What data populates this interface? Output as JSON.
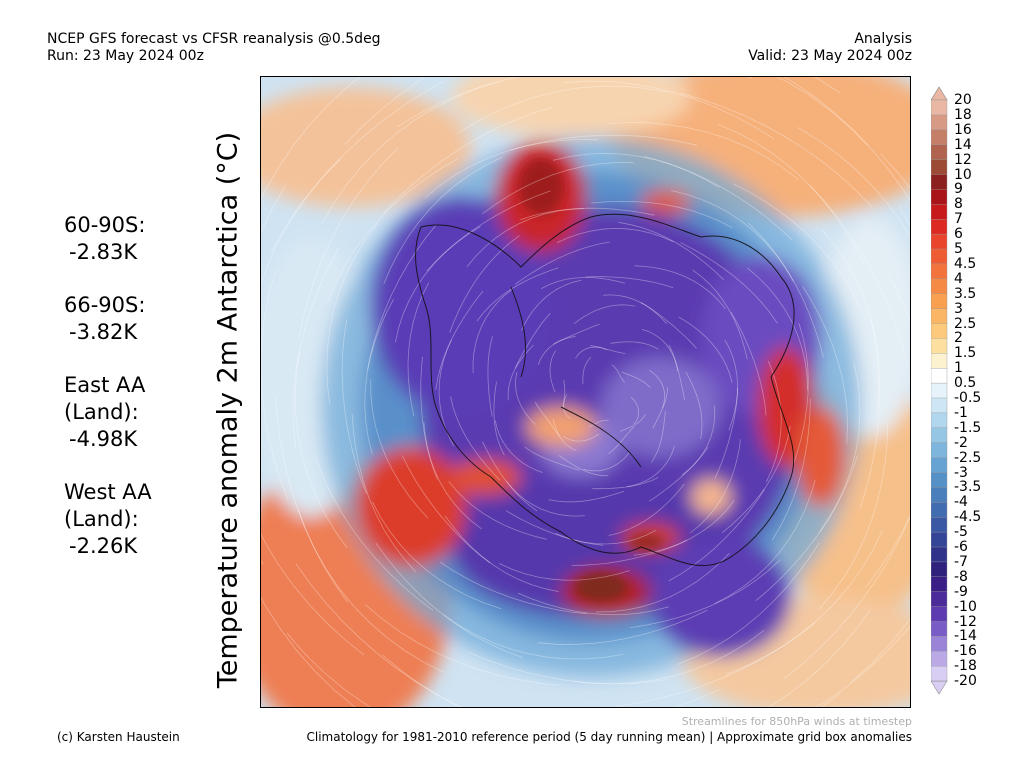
{
  "header": {
    "title": "NCEP GFS forecast vs CFSR reanalysis @0.5deg",
    "run": "Run: 23 May 2024 00z",
    "mode": "Analysis",
    "valid": "Valid: 23 May 2024 00z"
  },
  "ylabel": "Temperature anomaly 2m Antarctica (°C)",
  "stats": [
    {
      "name": "60-90S:",
      "value": "-2.83K"
    },
    {
      "name": "66-90S:",
      "value": "-3.82K"
    },
    {
      "name": "East AA\n(Land):",
      "value": "-4.98K"
    },
    {
      "name": "West AA\n(Land):",
      "value": "-2.26K"
    }
  ],
  "colorbar": {
    "labels": [
      "20",
      "18",
      "16",
      "14",
      "12",
      "10",
      "9",
      "8",
      "7",
      "6",
      "5",
      "4.5",
      "4",
      "3.5",
      "3",
      "2.5",
      "2",
      "1.5",
      "1",
      "0.5",
      "-0.5",
      "-1",
      "-1.5",
      "-2",
      "-2.5",
      "-3",
      "-3.5",
      "-4",
      "-4.5",
      "-5",
      "-6",
      "-7",
      "-8",
      "-9",
      "-10",
      "-12",
      "-14",
      "-16",
      "-18",
      "-20"
    ],
    "colors": [
      "#e9b7a3",
      "#d79a85",
      "#c57f69",
      "#b0644f",
      "#9c4a36",
      "#8c2020",
      "#a81418",
      "#c71a1c",
      "#dc2a22",
      "#e8452c",
      "#ee5c34",
      "#f2733c",
      "#f58a45",
      "#f8a050",
      "#fab664",
      "#fcca7c",
      "#fde0a0",
      "#fdf2d0",
      "#ffffff",
      "#e6f3fb",
      "#cde6f5",
      "#b0d7ee",
      "#95c7e5",
      "#7db5dc",
      "#67a3d2",
      "#5591c7",
      "#4a7fbc",
      "#416cb0",
      "#3a58a4",
      "#344597",
      "#30338a",
      "#2e227c",
      "#3a1f86",
      "#4b2a99",
      "#5e3bb0",
      "#7a5cc6",
      "#9a84d8",
      "#bba9e6",
      "#d8cdf2"
    ]
  },
  "footer": {
    "streamlines": "Streamlines for 850hPa winds at timestep",
    "credit": "(c) Karsten Haustein",
    "climatology": "Climatology for 1981-2010 reference period (5 day running mean) | Approximate grid box anomalies"
  }
}
